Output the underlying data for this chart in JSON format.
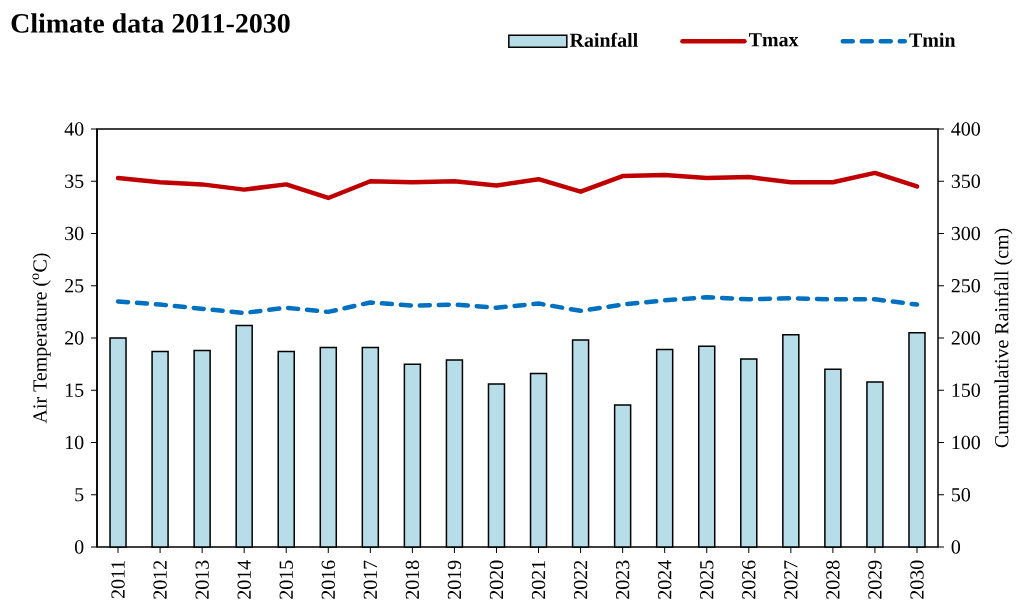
{
  "chart_data": {
    "type": "bar",
    "title": "Climate data 2011-2030",
    "ylabel": "Air Temperature ($^{o}$C)",
    "y2label": "Cummulative Rainfall (cm)",
    "categories": [
      "2011",
      "2012",
      "2013",
      "2014",
      "2015",
      "2016",
      "2017",
      "2018",
      "2019",
      "2020",
      "2021",
      "2022",
      "2023",
      "2024",
      "2025",
      "2026",
      "2027",
      "2028",
      "2029",
      "2030"
    ],
    "series": [
      {
        "name": "Rainfall",
        "axis": "y2",
        "color": "#b7dde8",
        "values": [
          200,
          187,
          188,
          212,
          187,
          191,
          191,
          175,
          179,
          156,
          166,
          198,
          136,
          189,
          192,
          180,
          203,
          170,
          158,
          205
        ]
      },
      {
        "name": "Tmax",
        "type": "line",
        "color": "#c00000",
        "line_style": "solid",
        "values": [
          35.3,
          34.9,
          34.7,
          34.2,
          34.7,
          33.4,
          35.0,
          34.9,
          35.0,
          34.6,
          35.2,
          34.0,
          35.5,
          35.6,
          35.3,
          35.4,
          34.9,
          34.9,
          35.8,
          34.5
        ]
      },
      {
        "name": "Tmin",
        "type": "line",
        "color": "#0070c0",
        "line_style": "dashed",
        "values": [
          23.5,
          23.2,
          22.8,
          22.4,
          22.9,
          22.5,
          23.4,
          23.1,
          23.2,
          22.9,
          23.3,
          22.6,
          23.2,
          23.6,
          23.9,
          23.7,
          23.8,
          23.7,
          23.7,
          23.2
        ]
      }
    ],
    "ylim": [
      0,
      40
    ],
    "yticks": [
      0,
      5,
      10,
      15,
      20,
      25,
      30,
      35,
      40
    ],
    "y2lim": [
      0,
      400
    ],
    "y2ticks": [
      0,
      50,
      100,
      150,
      200,
      250,
      300,
      350,
      400
    ],
    "legend": "top"
  }
}
